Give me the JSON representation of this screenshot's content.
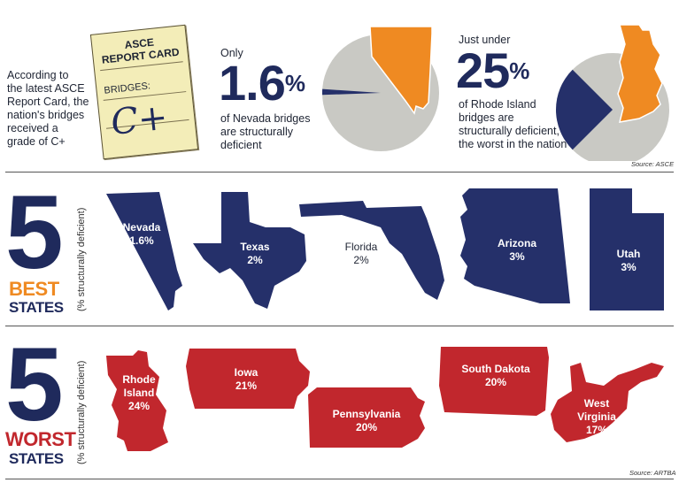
{
  "intro": {
    "lines": [
      "According to",
      "the latest ASCE",
      "Report Card, the",
      "nation's bridges",
      "received a",
      "grade of C+"
    ]
  },
  "report_card": {
    "title_line1": "ASCE",
    "title_line2": "REPORT CARD",
    "subject": "BRIDGES:",
    "grade": "C+"
  },
  "nevada_stat": {
    "prefix": "Only",
    "value": "1.6",
    "unit": "%",
    "lines": [
      "of Nevada bridges",
      "are structurally",
      "deficient"
    ]
  },
  "ri_stat": {
    "prefix": "Just under",
    "value": "25",
    "unit": "%",
    "lines": [
      "of Rhode Island",
      "bridges are",
      "structurally deficient,",
      "the worst in the nation"
    ]
  },
  "source_top": "Source: ASCE",
  "best": {
    "number": "5",
    "word": "BEST",
    "word2": "STATES",
    "axis_note": "(% structurally deficient)"
  },
  "worst": {
    "number": "5",
    "word": "WORST",
    "word2": "STATES",
    "axis_note": "(% structurally deficient)"
  },
  "source_bottom": "Source: ARTBA",
  "colors": {
    "navy": "#25306a",
    "red": "#c1272d",
    "orange": "#ef8a22",
    "gray": "#c9c9c4",
    "best_word": "#ef8a22",
    "worst_word": "#c1272d"
  },
  "chart_data": [
    {
      "type": "pie",
      "categories": [
        "structurally deficient",
        "other"
      ],
      "values": [
        1.6,
        98.4
      ],
      "title": ""
    },
    {
      "type": "pie",
      "categories": [
        "structurally deficient",
        "other"
      ],
      "values": [
        25,
        75
      ],
      "title": ""
    },
    {
      "type": "bar",
      "categories": [
        "Nevada",
        "Texas",
        "Florida",
        "Arizona",
        "Utah"
      ],
      "values": [
        1.6,
        2,
        2,
        3,
        3
      ],
      "labels": [
        "1.6%",
        "2%",
        "2%",
        "3%",
        "3%"
      ],
      "title": "5 BEST STATES",
      "ylabel": "(% structurally deficient)"
    },
    {
      "type": "bar",
      "categories": [
        "Rhode Island",
        "Iowa",
        "Pennsylvania",
        "South Dakota",
        "West Virginia"
      ],
      "values": [
        24,
        21,
        20,
        20,
        17
      ],
      "labels": [
        "24%",
        "21%",
        "20%",
        "20%",
        "17%"
      ],
      "title": "5 WORST STATES",
      "ylabel": "(% structurally deficient)"
    }
  ]
}
